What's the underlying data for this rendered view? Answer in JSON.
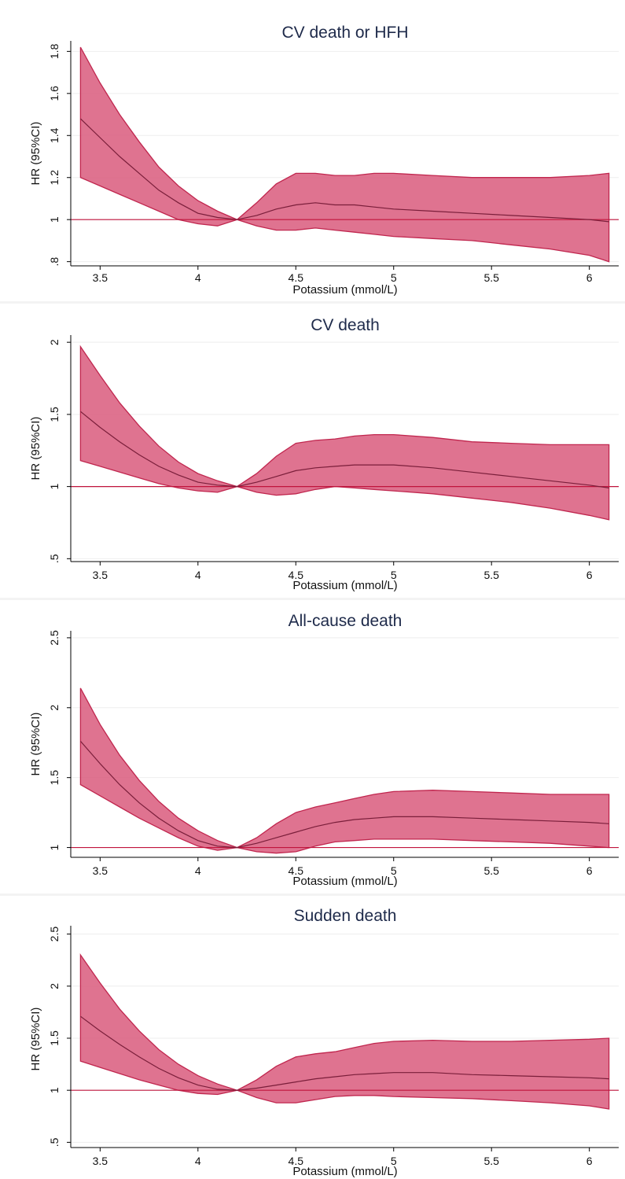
{
  "chart_data": [
    {
      "type": "area",
      "title": "CV death or HFH",
      "xlabel": "Potassium (mmol/L)",
      "ylabel": "HR (95%CI)",
      "xlim": [
        3.35,
        6.15
      ],
      "ylim": [
        0.78,
        1.85
      ],
      "xticks": [
        3.5,
        4,
        4.5,
        5,
        5.5,
        6
      ],
      "xtick_labels": [
        "3.5",
        "4",
        "4.5",
        "5",
        "5.5",
        "6"
      ],
      "yticks": [
        0.8,
        1,
        1.2,
        1.4,
        1.6,
        1.8
      ],
      "ytick_labels": [
        ".8",
        "1",
        "1.2",
        "1.4",
        "1.6",
        "1.8"
      ],
      "reference_line": 1,
      "grid": "horizontal",
      "x": [
        3.4,
        3.5,
        3.6,
        3.7,
        3.8,
        3.9,
        4.0,
        4.1,
        4.2,
        4.3,
        4.4,
        4.5,
        4.6,
        4.7,
        4.8,
        4.9,
        5.0,
        5.2,
        5.4,
        5.6,
        5.8,
        6.0,
        6.1
      ],
      "series": [
        {
          "values": [
            1.48,
            1.39,
            1.3,
            1.22,
            1.14,
            1.08,
            1.03,
            1.01,
            1.0,
            1.02,
            1.05,
            1.07,
            1.08,
            1.07,
            1.07,
            1.06,
            1.05,
            1.04,
            1.03,
            1.02,
            1.01,
            1.0,
            0.99
          ]
        },
        {
          "values": [
            1.2,
            1.16,
            1.12,
            1.08,
            1.04,
            1.0,
            0.98,
            0.97,
            1.0,
            0.97,
            0.95,
            0.95,
            0.96,
            0.95,
            0.94,
            0.93,
            0.92,
            0.91,
            0.9,
            0.88,
            0.86,
            0.83,
            0.8
          ]
        },
        {
          "values": [
            1.82,
            1.65,
            1.5,
            1.37,
            1.25,
            1.16,
            1.09,
            1.04,
            1.0,
            1.08,
            1.17,
            1.22,
            1.22,
            1.21,
            1.21,
            1.22,
            1.22,
            1.21,
            1.2,
            1.2,
            1.2,
            1.21,
            1.22
          ]
        }
      ]
    },
    {
      "type": "area",
      "title": "CV death",
      "xlabel": "Potassium (mmol/L)",
      "ylabel": "HR (95%CI)",
      "xlim": [
        3.35,
        6.15
      ],
      "ylim": [
        0.48,
        2.05
      ],
      "xticks": [
        3.5,
        4,
        4.5,
        5,
        5.5,
        6
      ],
      "xtick_labels": [
        "3.5",
        "4",
        "4.5",
        "5",
        "5.5",
        "6"
      ],
      "yticks": [
        0.5,
        1,
        1.5,
        2
      ],
      "ytick_labels": [
        ".5",
        "1",
        "1.5",
        "2"
      ],
      "reference_line": 1,
      "grid": "horizontal",
      "x": [
        3.4,
        3.5,
        3.6,
        3.7,
        3.8,
        3.9,
        4.0,
        4.1,
        4.2,
        4.3,
        4.4,
        4.5,
        4.6,
        4.7,
        4.8,
        4.9,
        5.0,
        5.2,
        5.4,
        5.6,
        5.8,
        6.0,
        6.1
      ],
      "series": [
        {
          "values": [
            1.52,
            1.41,
            1.31,
            1.22,
            1.14,
            1.08,
            1.03,
            1.01,
            1.0,
            1.03,
            1.07,
            1.11,
            1.13,
            1.14,
            1.15,
            1.15,
            1.15,
            1.13,
            1.1,
            1.07,
            1.04,
            1.01,
            0.99
          ]
        },
        {
          "values": [
            1.18,
            1.14,
            1.1,
            1.06,
            1.02,
            0.99,
            0.97,
            0.96,
            1.0,
            0.96,
            0.94,
            0.95,
            0.98,
            1.0,
            0.99,
            0.98,
            0.97,
            0.95,
            0.92,
            0.89,
            0.85,
            0.8,
            0.77
          ]
        },
        {
          "values": [
            1.97,
            1.77,
            1.58,
            1.42,
            1.28,
            1.17,
            1.09,
            1.04,
            1.0,
            1.09,
            1.21,
            1.3,
            1.32,
            1.33,
            1.35,
            1.36,
            1.36,
            1.34,
            1.31,
            1.3,
            1.29,
            1.29,
            1.29
          ]
        }
      ]
    },
    {
      "type": "area",
      "title": "All-cause death",
      "xlabel": "Potassium (mmol/L)",
      "ylabel": "HR (95%CI)",
      "xlim": [
        3.35,
        6.15
      ],
      "ylim": [
        0.93,
        2.55
      ],
      "xticks": [
        3.5,
        4,
        4.5,
        5,
        5.5,
        6
      ],
      "xtick_labels": [
        "3.5",
        "4",
        "4.5",
        "5",
        "5.5",
        "6"
      ],
      "yticks": [
        1,
        1.5,
        2,
        2.5
      ],
      "ytick_labels": [
        "1",
        "1.5",
        "2",
        "2.5"
      ],
      "reference_line": 1,
      "grid": "horizontal",
      "x": [
        3.4,
        3.5,
        3.6,
        3.7,
        3.8,
        3.9,
        4.0,
        4.1,
        4.2,
        4.3,
        4.4,
        4.5,
        4.6,
        4.7,
        4.8,
        4.9,
        5.0,
        5.2,
        5.4,
        5.6,
        5.8,
        6.0,
        6.1
      ],
      "series": [
        {
          "values": [
            1.76,
            1.6,
            1.45,
            1.32,
            1.21,
            1.12,
            1.05,
            1.01,
            1.0,
            1.03,
            1.07,
            1.11,
            1.15,
            1.18,
            1.2,
            1.21,
            1.22,
            1.22,
            1.21,
            1.2,
            1.19,
            1.18,
            1.17
          ]
        },
        {
          "values": [
            1.45,
            1.37,
            1.29,
            1.21,
            1.14,
            1.07,
            1.01,
            0.98,
            1.0,
            0.97,
            0.96,
            0.97,
            1.01,
            1.04,
            1.05,
            1.06,
            1.06,
            1.06,
            1.05,
            1.04,
            1.03,
            1.01,
            1.0
          ]
        },
        {
          "values": [
            2.14,
            1.88,
            1.66,
            1.48,
            1.33,
            1.21,
            1.12,
            1.05,
            1.0,
            1.07,
            1.17,
            1.25,
            1.29,
            1.32,
            1.35,
            1.38,
            1.4,
            1.41,
            1.4,
            1.39,
            1.38,
            1.38,
            1.38
          ]
        }
      ]
    },
    {
      "type": "area",
      "title": "Sudden death",
      "xlabel": "Potassium (mmol/L)",
      "ylabel": "HR (95%CI)",
      "xlim": [
        3.35,
        6.15
      ],
      "ylim": [
        0.45,
        2.58
      ],
      "xticks": [
        3.5,
        4,
        4.5,
        5,
        5.5,
        6
      ],
      "xtick_labels": [
        "3.5",
        "4",
        "4.5",
        "5",
        "5.5",
        "6"
      ],
      "yticks": [
        0.5,
        1,
        1.5,
        2,
        2.5
      ],
      "ytick_labels": [
        ".5",
        "1",
        "1.5",
        "2",
        "2.5"
      ],
      "reference_line": 1,
      "grid": "horizontal",
      "x": [
        3.4,
        3.5,
        3.6,
        3.7,
        3.8,
        3.9,
        4.0,
        4.1,
        4.2,
        4.3,
        4.4,
        4.5,
        4.6,
        4.7,
        4.8,
        4.9,
        5.0,
        5.2,
        5.4,
        5.6,
        5.8,
        6.0,
        6.1
      ],
      "series": [
        {
          "values": [
            1.71,
            1.57,
            1.44,
            1.32,
            1.21,
            1.12,
            1.05,
            1.01,
            1.0,
            1.02,
            1.05,
            1.08,
            1.11,
            1.13,
            1.15,
            1.16,
            1.17,
            1.17,
            1.15,
            1.14,
            1.13,
            1.12,
            1.11
          ]
        },
        {
          "values": [
            1.28,
            1.22,
            1.16,
            1.1,
            1.05,
            1.0,
            0.97,
            0.96,
            1.0,
            0.93,
            0.88,
            0.88,
            0.91,
            0.94,
            0.95,
            0.95,
            0.94,
            0.93,
            0.92,
            0.9,
            0.88,
            0.85,
            0.82
          ]
        },
        {
          "values": [
            2.3,
            2.03,
            1.78,
            1.57,
            1.39,
            1.25,
            1.14,
            1.06,
            1.0,
            1.1,
            1.23,
            1.32,
            1.35,
            1.37,
            1.41,
            1.45,
            1.47,
            1.48,
            1.47,
            1.47,
            1.48,
            1.49,
            1.5
          ]
        }
      ]
    }
  ]
}
